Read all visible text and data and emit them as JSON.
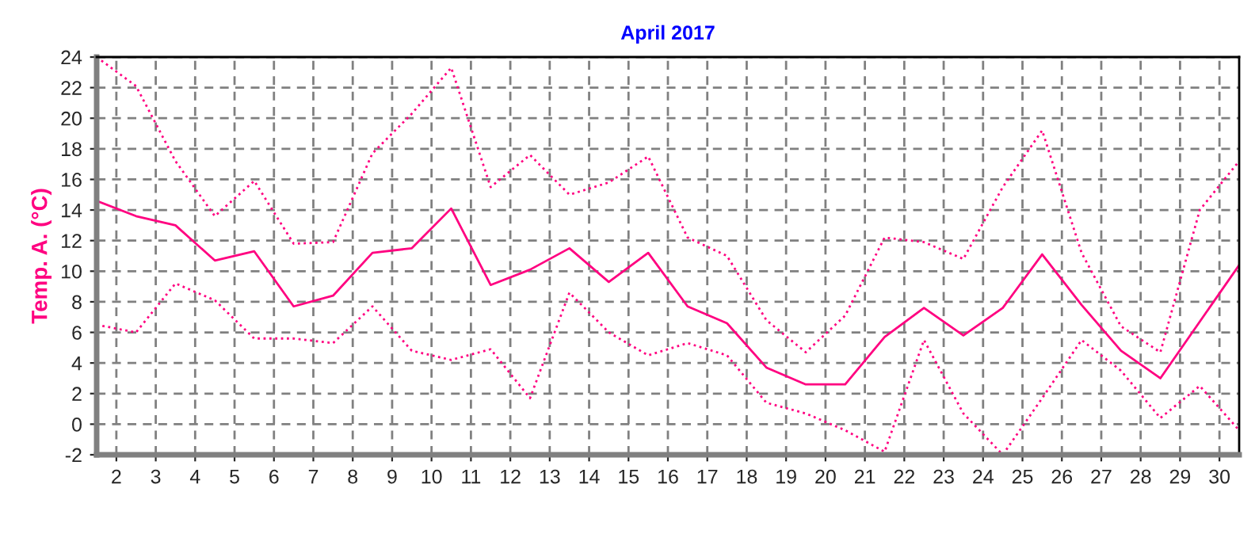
{
  "chart_data": {
    "type": "line",
    "title": "April 2017",
    "ylabel": "Temp. A. (°C)",
    "x": [
      1.5,
      2.5,
      3.5,
      4.5,
      5.5,
      6.5,
      7.5,
      8.5,
      9.5,
      10.5,
      11.5,
      12.5,
      13.5,
      14.5,
      15.5,
      16.5,
      17.5,
      18.5,
      19.5,
      20.5,
      21.5,
      22.5,
      23.5,
      24.5,
      25.5,
      26.5,
      27.5,
      28.5,
      29.5,
      30.5
    ],
    "series": [
      {
        "color": "#ff0080",
        "line_style": "dotted",
        "values": [
          24,
          22.1,
          17.2,
          13.6,
          15.9,
          11.8,
          11.9,
          17.7,
          20.3,
          23.3,
          15.5,
          17.6,
          15.0,
          15.8,
          17.5,
          12.2,
          11.0,
          6.8,
          4.7,
          7.1,
          12.2,
          11.9,
          10.8,
          15.5,
          19.2,
          11.2,
          6.4,
          4.7,
          14.0,
          17.2
        ]
      },
      {
        "color": "#ff0080",
        "line_style": "solid",
        "values": [
          14.6,
          13.6,
          13.0,
          10.7,
          11.3,
          7.7,
          8.4,
          11.2,
          11.5,
          14.1,
          9.1,
          10.1,
          11.5,
          9.3,
          11.2,
          7.7,
          6.6,
          3.7,
          2.6,
          2.6,
          5.7,
          7.6,
          5.8,
          7.6,
          11.1,
          7.8,
          4.8,
          3.0,
          6.7,
          10.4
        ]
      },
      {
        "color": "#ff0080",
        "line_style": "dotted",
        "values": [
          6.5,
          6.0,
          9.2,
          8.1,
          5.6,
          5.6,
          5.3,
          7.7,
          4.8,
          4.2,
          4.9,
          1.7,
          8.6,
          6.0,
          4.5,
          5.3,
          4.5,
          1.4,
          0.7,
          -0.4,
          -1.8,
          5.5,
          0.7,
          -2.0,
          1.7,
          5.5,
          3.5,
          0.4,
          2.5,
          -0.4
        ]
      }
    ],
    "xlim": [
      1.5,
      30.5
    ],
    "xticks": [
      2,
      3,
      4,
      5,
      6,
      7,
      8,
      9,
      10,
      11,
      12,
      13,
      14,
      15,
      16,
      17,
      18,
      19,
      20,
      21,
      22,
      23,
      24,
      25,
      26,
      27,
      28,
      29,
      30
    ],
    "ylim": [
      -2,
      24
    ],
    "yticks": [
      -2,
      0,
      2,
      4,
      6,
      8,
      10,
      12,
      14,
      16,
      18,
      20,
      22,
      24
    ],
    "grid": true,
    "marker": "none",
    "legend": false
  }
}
